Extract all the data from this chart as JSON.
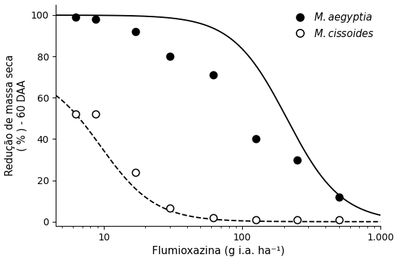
{
  "title": "",
  "xlabel": "Flumioxazina (g i.a. ha⁻¹)",
  "ylabel": "Redução de massa seca\n( % ) - 60 DAA",
  "xlim": [
    4.5,
    1000
  ],
  "ylim": [
    -2,
    105
  ],
  "yticks": [
    0,
    20,
    40,
    60,
    80,
    100
  ],
  "aegyptia_points_x": [
    6.25,
    8.75,
    17,
    30,
    62,
    125,
    250,
    500
  ],
  "aegyptia_points_y": [
    99,
    98,
    92,
    80,
    71,
    40,
    30,
    12
  ],
  "cissoides_points_x": [
    6.25,
    8.75,
    17,
    30,
    62,
    125,
    250,
    500
  ],
  "cissoides_points_y": [
    52,
    52,
    24,
    6.5,
    2,
    1,
    1,
    1
  ],
  "aegyptia_curve": {
    "C": 100,
    "b": 2.2,
    "ED50": 210
  },
  "cissoides_curve": {
    "C": 73,
    "b": 2.2,
    "ED50": 9.5
  },
  "color": "#000000"
}
